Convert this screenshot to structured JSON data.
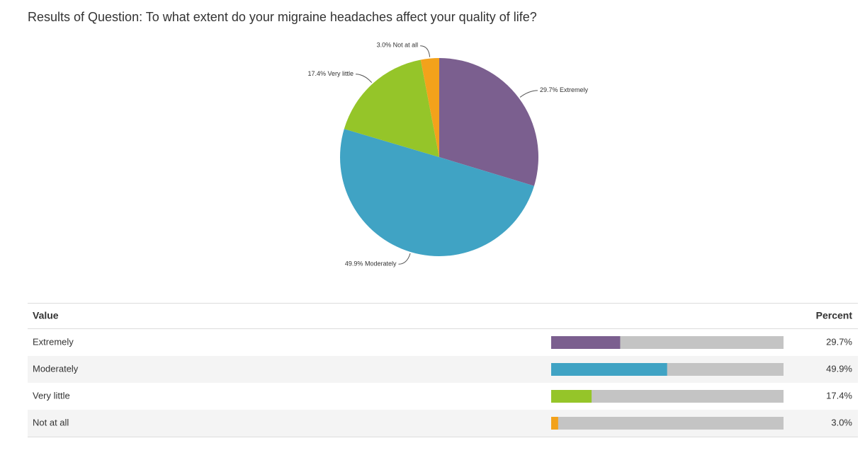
{
  "chart_data": {
    "type": "pie",
    "title": "Results of Question: To what extent do your migraine headaches affect your quality of life?",
    "categories": [
      "Extremely",
      "Moderately",
      "Very little",
      "Not at all"
    ],
    "values": [
      29.7,
      49.9,
      17.4,
      3.0
    ],
    "value_labels": [
      "29.7%",
      "49.9%",
      "17.4%",
      "3.0%"
    ],
    "colors": [
      "#7b5f8f",
      "#40a3c4",
      "#95c529",
      "#f3a21b"
    ]
  },
  "table": {
    "headers": [
      "Value",
      "Percent"
    ],
    "xlim": [
      0,
      100
    ]
  }
}
